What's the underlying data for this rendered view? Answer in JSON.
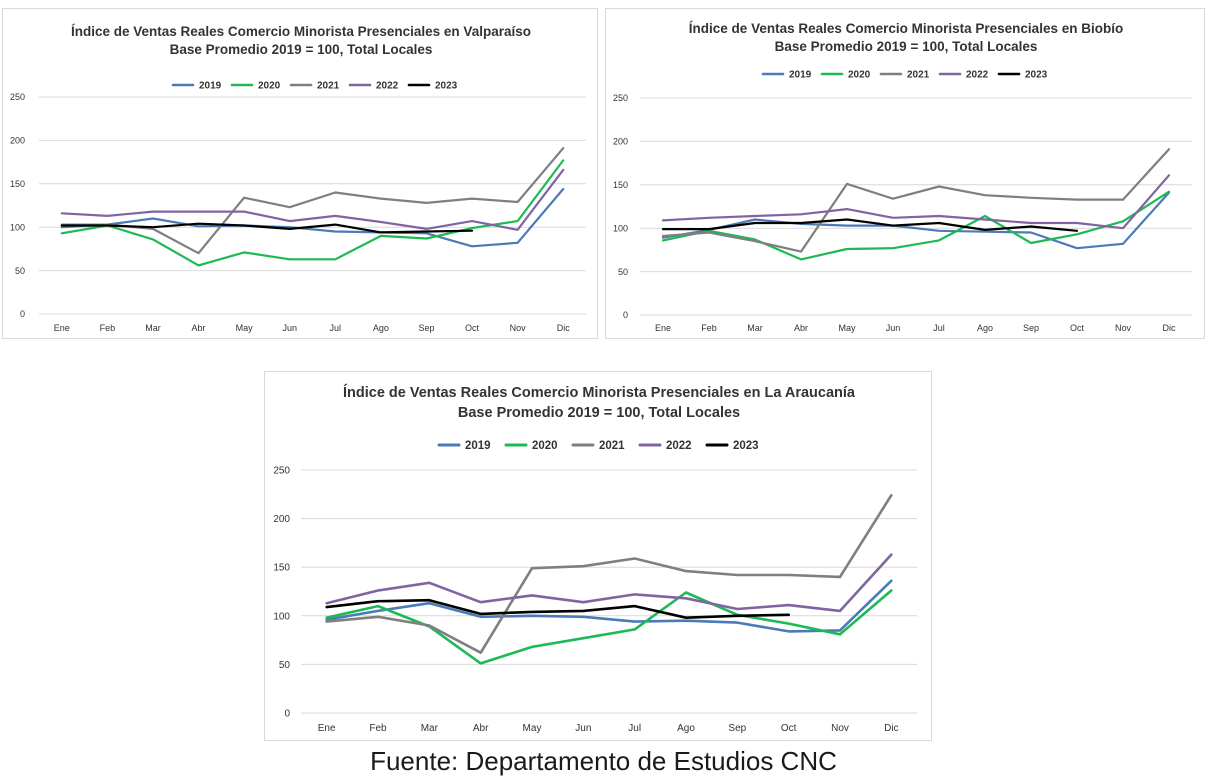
{
  "source": "Fuente: Departamento de Estudios CNC",
  "colors": {
    "2019": "#4a7bb7",
    "2020": "#1db954",
    "2021": "#7f7f7f",
    "2022": "#8064a2",
    "2023": "#000000"
  },
  "chart_data": [
    {
      "type": "line",
      "title": "Índice de Ventas Reales Comercio Minorista Presenciales en Valparaíso",
      "subtitle": "Base Promedio 2019 = 100, Total Locales",
      "categories": [
        "Ene",
        "Feb",
        "Mar",
        "Abr",
        "May",
        "Jun",
        "Jul",
        "Ago",
        "Sep",
        "Oct",
        "Nov",
        "Dic"
      ],
      "yticks": [
        0,
        50,
        100,
        150,
        200,
        250
      ],
      "ylim": [
        0,
        250
      ],
      "grid": true,
      "legend": "top",
      "series": [
        {
          "name": "2019",
          "color": "#4a7bb7",
          "values": [
            100,
            103,
            110,
            101,
            102,
            100,
            95,
            94,
            93,
            78,
            82,
            144
          ]
        },
        {
          "name": "2020",
          "color": "#1db954",
          "values": [
            93,
            102,
            86,
            56,
            71,
            63,
            63,
            90,
            87,
            99,
            107,
            177
          ]
        },
        {
          "name": "2021",
          "color": "#7f7f7f",
          "values": [
            103,
            103,
            98,
            70,
            134,
            123,
            140,
            133,
            128,
            133,
            129,
            191
          ]
        },
        {
          "name": "2022",
          "color": "#8064a2",
          "values": [
            116,
            113,
            118,
            118,
            118,
            107,
            113,
            106,
            98,
            107,
            97,
            166
          ]
        },
        {
          "name": "2023",
          "color": "#000000",
          "values": [
            102,
            102,
            100,
            104,
            102,
            98,
            103,
            94,
            95,
            96,
            null,
            null
          ]
        }
      ]
    },
    {
      "type": "line",
      "title": "Índice de Ventas Reales Comercio Minorista Presenciales en Biobío",
      "subtitle": "Base Promedio 2019 = 100, Total Locales",
      "categories": [
        "Ene",
        "Feb",
        "Mar",
        "Abr",
        "May",
        "Jun",
        "Jul",
        "Ago",
        "Sep",
        "Oct",
        "Nov",
        "Dic"
      ],
      "yticks": [
        0,
        50,
        100,
        150,
        200,
        250
      ],
      "ylim": [
        0,
        250
      ],
      "grid": true,
      "legend": "top",
      "series": [
        {
          "name": "2019",
          "color": "#4a7bb7",
          "values": [
            89,
            98,
            110,
            105,
            103,
            103,
            97,
            96,
            95,
            77,
            82,
            141
          ]
        },
        {
          "name": "2020",
          "color": "#1db954",
          "values": [
            86,
            97,
            87,
            64,
            76,
            77,
            86,
            114,
            83,
            93,
            108,
            142
          ]
        },
        {
          "name": "2021",
          "color": "#7f7f7f",
          "values": [
            91,
            95,
            85,
            73,
            151,
            134,
            148,
            138,
            135,
            133,
            133,
            191
          ]
        },
        {
          "name": "2022",
          "color": "#8064a2",
          "values": [
            109,
            112,
            114,
            116,
            122,
            112,
            114,
            110,
            106,
            106,
            100,
            161
          ]
        },
        {
          "name": "2023",
          "color": "#000000",
          "values": [
            99,
            99,
            106,
            106,
            110,
            103,
            106,
            98,
            102,
            97,
            null,
            null
          ]
        }
      ]
    },
    {
      "type": "line",
      "title": "Índice de Ventas Reales Comercio Minorista Presenciales en La Araucanía",
      "subtitle": "Base Promedio 2019 = 100, Total Locales",
      "categories": [
        "Ene",
        "Feb",
        "Mar",
        "Abr",
        "May",
        "Jun",
        "Jul",
        "Ago",
        "Sep",
        "Oct",
        "Nov",
        "Dic"
      ],
      "yticks": [
        0,
        50,
        100,
        150,
        200,
        250
      ],
      "ylim": [
        0,
        250
      ],
      "grid": true,
      "legend": "top",
      "series": [
        {
          "name": "2019",
          "color": "#4a7bb7",
          "values": [
            96,
            105,
            113,
            99,
            100,
            99,
            94,
            95,
            93,
            84,
            85,
            136
          ]
        },
        {
          "name": "2020",
          "color": "#1db954",
          "values": [
            98,
            110,
            89,
            51,
            68,
            77,
            86,
            124,
            101,
            92,
            81,
            126
          ]
        },
        {
          "name": "2021",
          "color": "#7f7f7f",
          "values": [
            94,
            99,
            90,
            62,
            149,
            151,
            159,
            146,
            142,
            142,
            140,
            224
          ]
        },
        {
          "name": "2022",
          "color": "#8064a2",
          "values": [
            113,
            126,
            134,
            114,
            121,
            114,
            122,
            118,
            107,
            111,
            105,
            163
          ]
        },
        {
          "name": "2023",
          "color": "#000000",
          "values": [
            109,
            115,
            116,
            102,
            104,
            105,
            110,
            98,
            100,
            101,
            null,
            null
          ]
        }
      ]
    }
  ]
}
